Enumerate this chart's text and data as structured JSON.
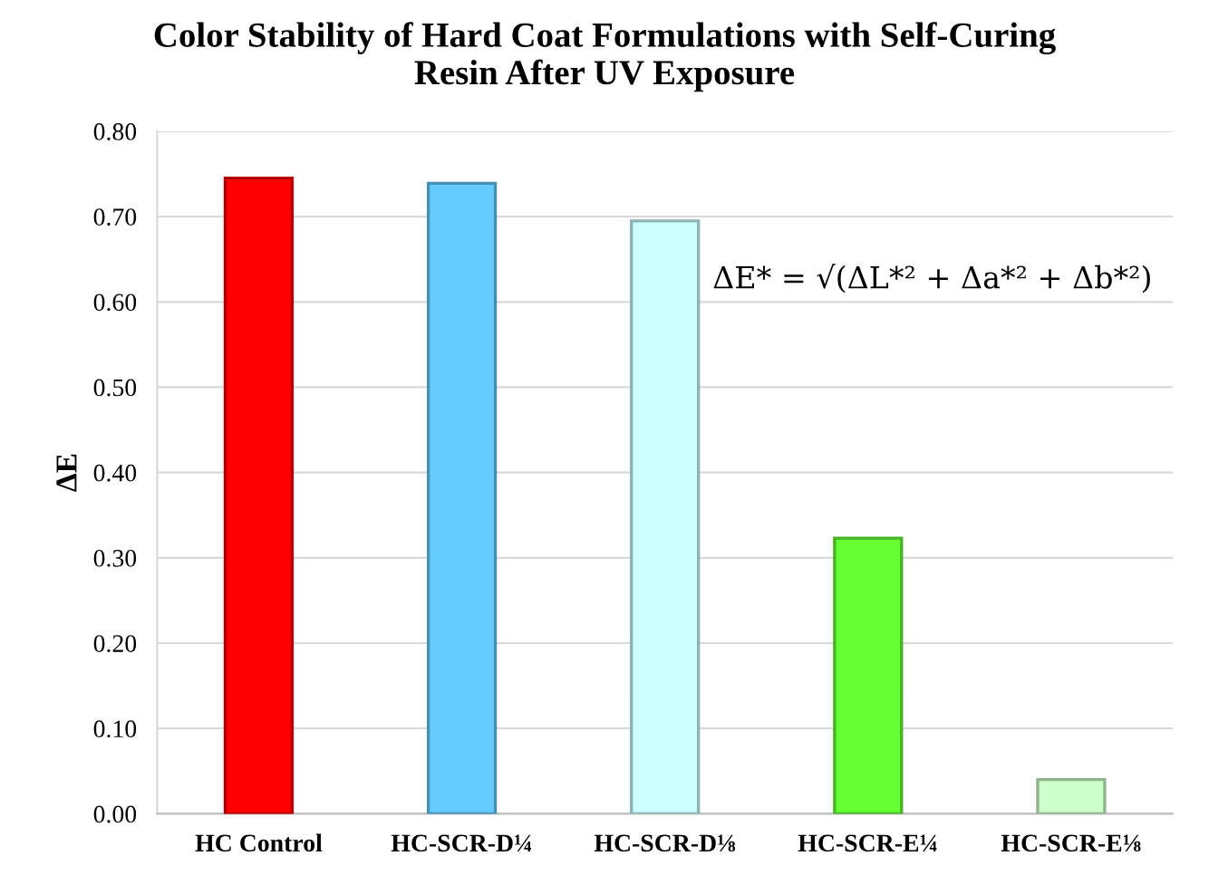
{
  "chart_data": {
    "type": "bar",
    "title": "Color Stability of Hard Coat Formulations with Self-Curing\nResin After UV Exposure",
    "ylabel": "ΔE",
    "categories": [
      "HC Control",
      "HC-SCR-D¼",
      "HC-SCR-D⅛",
      "HC-SCR-E¼",
      "HC-SCR-E⅛"
    ],
    "values": [
      0.745,
      0.739,
      0.695,
      0.323,
      0.04
    ],
    "colors": [
      "#ff0000",
      "#66ccff",
      "#ccffff",
      "#66ff33",
      "#ccffcc"
    ],
    "ylim": [
      0,
      0.8
    ],
    "yticks": [
      {
        "value": 0,
        "label": "0.00"
      },
      {
        "value": 0.1,
        "label": "0.10"
      },
      {
        "value": 0.2,
        "label": "0.20"
      },
      {
        "value": 0.3,
        "label": "0.30"
      },
      {
        "value": 0.4,
        "label": "0.40"
      },
      {
        "value": 0.5,
        "label": "0.50"
      },
      {
        "value": 0.6,
        "label": "0.60"
      },
      {
        "value": 0.7,
        "label": "0.70"
      },
      {
        "value": 0.8,
        "label": "0.80"
      }
    ],
    "grid": "y",
    "annotations": [
      "ΔE* = √(ΔL*² + Δa*² + Δb*²)"
    ]
  }
}
